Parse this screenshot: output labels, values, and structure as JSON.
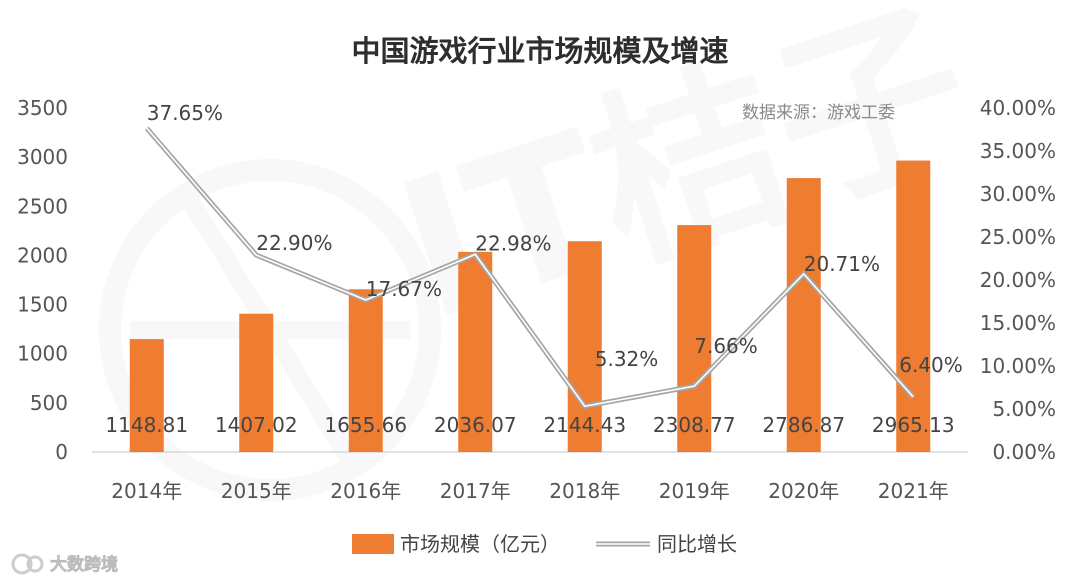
{
  "chart_data": {
    "type": "bar",
    "title": "中国游戏行业市场规模及增速",
    "source": "数据来源：游戏工委",
    "categories": [
      "2014年",
      "2015年",
      "2016年",
      "2017年",
      "2018年",
      "2019年",
      "2020年",
      "2021年"
    ],
    "series": [
      {
        "name": "市场规模（亿元）",
        "kind": "bar",
        "axis": "left",
        "color": "#ee7d31",
        "values": [
          1148.81,
          1407.02,
          1655.66,
          2036.07,
          2144.43,
          2308.77,
          2786.87,
          2965.13
        ],
        "value_labels": [
          "1148.81",
          "1407.02",
          "1655.66",
          "2036.07",
          "2144.43",
          "2308.77",
          "2786.87",
          "2965.13"
        ]
      },
      {
        "name": "同比增长",
        "kind": "line",
        "axis": "right",
        "color": "#a6a6a6",
        "values": [
          37.65,
          22.9,
          17.67,
          22.98,
          5.32,
          7.66,
          20.71,
          6.4
        ],
        "value_labels": [
          "37.65%",
          "22.90%",
          "17.67%",
          "22.98%",
          "5.32%",
          "7.66%",
          "20.71%",
          "6.40%"
        ]
      }
    ],
    "y_left": {
      "range": [
        0,
        3500
      ],
      "ticks": [
        "0",
        "500",
        "1000",
        "1500",
        "2000",
        "2500",
        "3000",
        "3500"
      ]
    },
    "y_right": {
      "range": [
        0,
        40
      ],
      "ticks": [
        "0.00%",
        "5.00%",
        "10.00%",
        "15.00%",
        "20.00%",
        "25.00%",
        "30.00%",
        "35.00%",
        "40.00%"
      ]
    },
    "grid": false,
    "legend_position": "bottom"
  },
  "footer": {
    "brand": "大数跨境"
  }
}
